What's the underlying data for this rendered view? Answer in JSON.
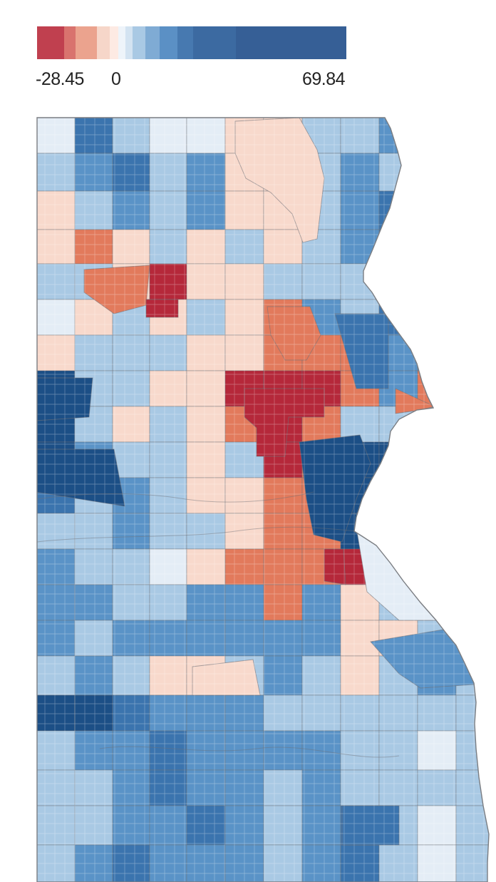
{
  "legend": {
    "min_label": "-28.45",
    "zero_label": "0",
    "max_label": "69.84",
    "range": [
      -28.45,
      69.84
    ],
    "color_steps": [
      "#c0404f",
      "#d9736e",
      "#eba38e",
      "#f6d6c9",
      "#fdeae3",
      "#eef4fa",
      "#d3e3f1",
      "#a9c9e4",
      "#7fabd4",
      "#5b90c5",
      "#4779b0",
      "#3c6aa1",
      "#365f96"
    ]
  },
  "colors": {
    "background": "#ffffff",
    "boundary": "#6f7278",
    "street": "#c9ced6",
    "negative_strong": "#b5283a",
    "negative_medium": "#e27a5c",
    "negative_light": "#f8d9cc",
    "positive_faint": "#e4edf6",
    "positive_light": "#a9c9e4",
    "positive_medium": "#5a93c7",
    "positive_strong": "#3b74ae",
    "positive_max": "#1c4f86"
  }
}
